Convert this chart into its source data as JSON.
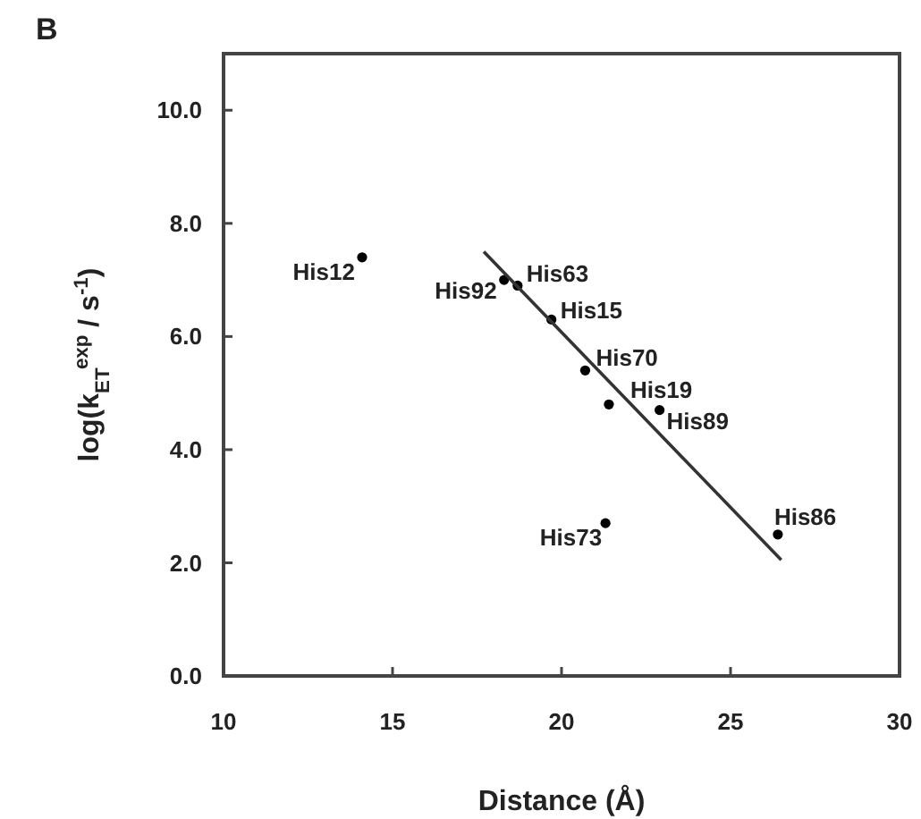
{
  "chart_data": {
    "type": "scatter",
    "xlabel": "Distance (Å)",
    "ylabel": "log(k$_{ET}$$^{exp}$ / s$^{-1}$)",
    "xlim": [
      10,
      30
    ],
    "ylim": [
      0,
      11
    ],
    "xticks": [
      10,
      15,
      20,
      25,
      30
    ],
    "yticks": [
      {
        "value": 0,
        "label": "0.0"
      },
      {
        "value": 2,
        "label": "2.0"
      },
      {
        "value": 4,
        "label": "4.0"
      },
      {
        "value": 6,
        "label": "6.0"
      },
      {
        "value": 8,
        "label": "8.0"
      },
      {
        "value": 10,
        "label": "10.0"
      }
    ],
    "grid": false,
    "series": [
      {
        "color": "#000000",
        "marker": "circle",
        "x": [
          14.1,
          18.3,
          18.7,
          19.7,
          20.7,
          21.4,
          22.9,
          21.3,
          26.4
        ],
        "values": [
          7.4,
          7.0,
          6.9,
          6.3,
          5.4,
          4.8,
          4.7,
          2.7,
          2.5
        ]
      },
      {
        "type": "line",
        "color": "#333333",
        "line_style": "solid",
        "marker": "none",
        "x": [
          17.7,
          26.5
        ],
        "values": [
          7.5,
          2.05
        ]
      }
    ],
    "annotations": [
      "B",
      {
        "text": "His12",
        "x": 14.1,
        "y": 7.4
      },
      {
        "text": "His92",
        "x": 18.3,
        "y": 7.0
      },
      {
        "text": "His63",
        "x": 18.7,
        "y": 6.9
      },
      {
        "text": "His15",
        "x": 19.7,
        "y": 6.3
      },
      {
        "text": "His70",
        "x": 20.7,
        "y": 5.4
      },
      {
        "text": "His19",
        "x": 21.4,
        "y": 4.8
      },
      {
        "text": "His89",
        "x": 22.9,
        "y": 4.7
      },
      {
        "text": "His73",
        "x": 21.3,
        "y": 2.7
      },
      {
        "text": "His86",
        "x": 26.4,
        "y": 2.5
      }
    ]
  }
}
